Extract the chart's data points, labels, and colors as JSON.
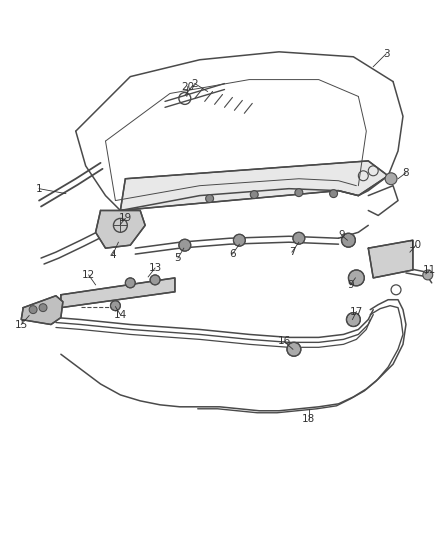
{
  "bg_color": "#ffffff",
  "line_color": "#4a4a4a",
  "label_color": "#333333",
  "lw_main": 1.1,
  "lw_thin": 0.7,
  "figsize": [
    4.38,
    5.33
  ],
  "dpi": 100
}
